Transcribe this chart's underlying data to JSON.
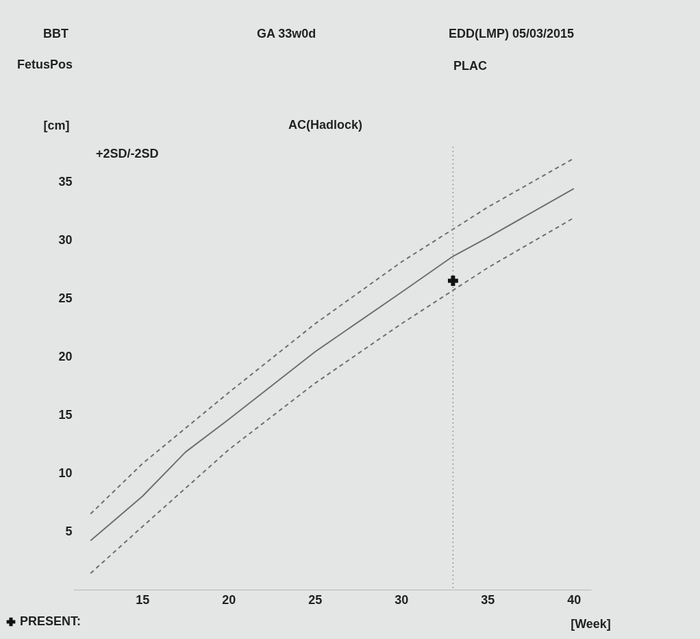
{
  "chart_data": {
    "type": "line",
    "title": "AC(Hadlock)",
    "xlabel": "[Week]",
    "ylabel": "[cm]",
    "annotations": [
      "BBT",
      "GA  33w0d",
      "EDD(LMP)  05/03/2015",
      "FetusPos",
      "PLAC",
      "+2SD/-2SD"
    ],
    "xlim": [
      11,
      41
    ],
    "xticks": [
      15,
      20,
      25,
      30,
      35,
      40
    ],
    "ylim": [
      0,
      38
    ],
    "yticks": [
      5,
      10,
      15,
      20,
      25,
      30,
      35
    ],
    "grid": false,
    "legend": "bottom left",
    "series": [
      {
        "color": "#6e6e6e",
        "line_style": "solid",
        "x": [
          12,
          15,
          17.5,
          20,
          25,
          30,
          33,
          35,
          40
        ],
        "values": [
          4.2,
          8.0,
          11.8,
          14.6,
          20.4,
          25.5,
          28.6,
          30.2,
          34.4
        ]
      },
      {
        "color": "#6e6e6e",
        "line_style": "dashed",
        "x": [
          12,
          15,
          20,
          25,
          30,
          35,
          40
        ],
        "values": [
          6.5,
          10.8,
          16.9,
          22.8,
          28.1,
          32.8,
          37.0
        ]
      },
      {
        "color": "#6e6e6e",
        "line_style": "dashed",
        "x": [
          12,
          15,
          20,
          25,
          30,
          35,
          40
        ],
        "values": [
          1.4,
          5.4,
          12.0,
          17.7,
          22.8,
          27.6,
          31.9
        ]
      },
      {
        "type": "scatter",
        "name": "PRESENT:",
        "color": "#111111",
        "marker": "cross",
        "x": [
          33
        ],
        "values": [
          26.5
        ]
      }
    ],
    "ref_lines": [
      {
        "axis": "x",
        "value": 33,
        "color": "#9a9a9a",
        "line_style": "dotted"
      }
    ]
  }
}
